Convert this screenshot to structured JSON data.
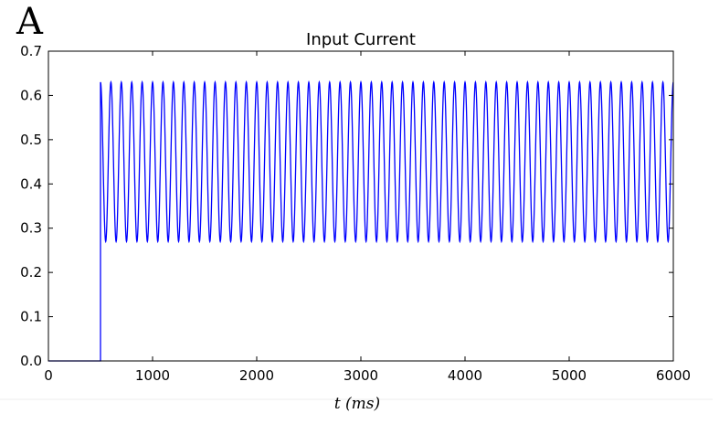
{
  "figure": {
    "panel_label": "A"
  },
  "chart_data": {
    "type": "line",
    "title": "Input Current",
    "xlabel": "t (ms)",
    "ylabel": "",
    "xlim": [
      0,
      6000
    ],
    "ylim": [
      0.0,
      0.7
    ],
    "xticks": [
      0,
      1000,
      2000,
      3000,
      4000,
      5000,
      6000
    ],
    "xtick_labels": [
      "0",
      "1000",
      "2000",
      "3000",
      "4000",
      "5000",
      "6000"
    ],
    "yticks": [
      0.0,
      0.1,
      0.2,
      0.3,
      0.4,
      0.5,
      0.6,
      0.7
    ],
    "ytick_labels": [
      "0.0",
      "0.1",
      "0.2",
      "0.3",
      "0.4",
      "0.5",
      "0.6",
      "0.7"
    ],
    "grid": false,
    "legend": "none",
    "series": [
      {
        "color": "#0000ff",
        "description_values": {
          "baseline_before_onset": 0.0,
          "onset_time": 500,
          "end_time": 6000,
          "oscillation_min": 0.27,
          "oscillation_max": 0.63,
          "oscillation_period": 100,
          "peaks_start_time": 500
        }
      }
    ]
  }
}
